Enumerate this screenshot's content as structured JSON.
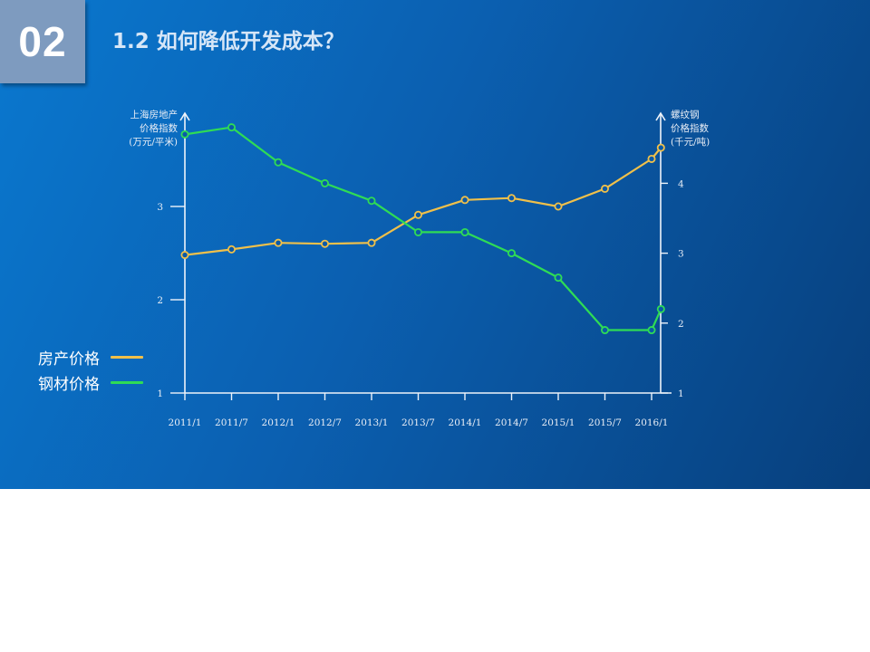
{
  "header": {
    "section_number": "02",
    "title": "1.2  如何降低开发成本？"
  },
  "legend": {
    "items": [
      {
        "label": "房产价格",
        "color": "#f0c04a"
      },
      {
        "label": "钢材价格",
        "color": "#2fdc55"
      }
    ]
  },
  "chart_data": {
    "type": "line",
    "x_categories": [
      "2011/1",
      "2011/7",
      "2012/1",
      "2012/7",
      "2013/1",
      "2013/7",
      "2014/1",
      "2014/7",
      "2015/1",
      "2015/7",
      "2016/1"
    ],
    "left_axis": {
      "title_lines": [
        "上海房地产",
        "价格指数",
        "(万元/平米)"
      ],
      "ticks": [
        "1",
        "2",
        "3"
      ],
      "range": [
        1,
        3.8
      ]
    },
    "right_axis": {
      "title_lines": [
        "螺纹钢",
        "价格指数",
        "(千元/吨)"
      ],
      "ticks": [
        "1",
        "2",
        "3",
        "4"
      ],
      "range": [
        1,
        4.9
      ]
    },
    "series": [
      {
        "name": "房产价格",
        "axis": "left",
        "color": "#f0c04a",
        "x": [
          0,
          1,
          2,
          3,
          4,
          5,
          6,
          7,
          8,
          9,
          10,
          10.2
        ],
        "values": [
          2.48,
          2.54,
          2.61,
          2.6,
          2.61,
          2.91,
          3.07,
          3.09,
          3.0,
          3.19,
          3.51,
          3.63
        ]
      },
      {
        "name": "钢材价格",
        "axis": "right",
        "color": "#2fdc55",
        "x": [
          0,
          1,
          2,
          3,
          4,
          5,
          6,
          7,
          8,
          9,
          10,
          10.2
        ],
        "values": [
          4.7,
          4.8,
          4.3,
          4.0,
          3.75,
          3.3,
          3.3,
          3.0,
          2.65,
          1.9,
          1.9,
          2.2
        ]
      }
    ]
  }
}
